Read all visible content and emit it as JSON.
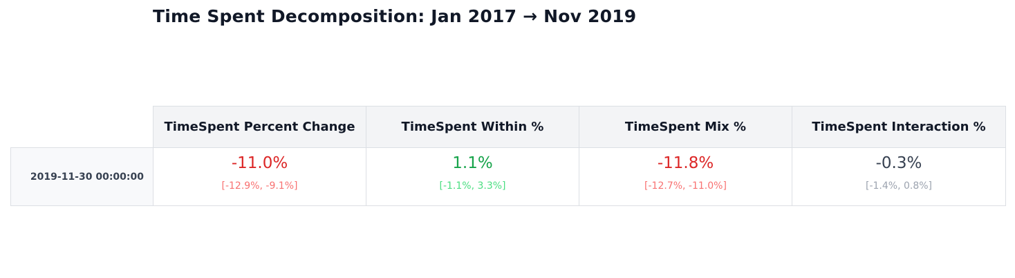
{
  "title": "Time Spent Decomposition: Jan 2017 → Nov 2019",
  "colors": {
    "negative": "#dc2626",
    "negative_ci": "#f87171",
    "positive": "#16a34a",
    "positive_ci": "#4ade80",
    "neutral": "#374151",
    "neutral_ci": "#9ca3af",
    "header_bg": "#f3f4f6",
    "border": "#dcdfe4"
  },
  "chart_data": {
    "type": "table",
    "title": "Time Spent Decomposition: Jan 2017 → Nov 2019",
    "columns": [
      "TimeSpent Percent Change",
      "TimeSpent Within %",
      "TimeSpent Mix %",
      "TimeSpent Interaction %"
    ],
    "rows": [
      {
        "label": "2019-11-30 00:00:00",
        "cells": [
          {
            "value": "-11.0%",
            "ci": "[-12.9%, -9.1%]",
            "tone": "negative"
          },
          {
            "value": "1.1%",
            "ci": "[-1.1%, 3.3%]",
            "tone": "positive"
          },
          {
            "value": "-11.8%",
            "ci": "[-12.7%, -11.0%]",
            "tone": "negative"
          },
          {
            "value": "-0.3%",
            "ci": "[-1.4%, 0.8%]",
            "tone": "neutral"
          }
        ]
      }
    ]
  }
}
